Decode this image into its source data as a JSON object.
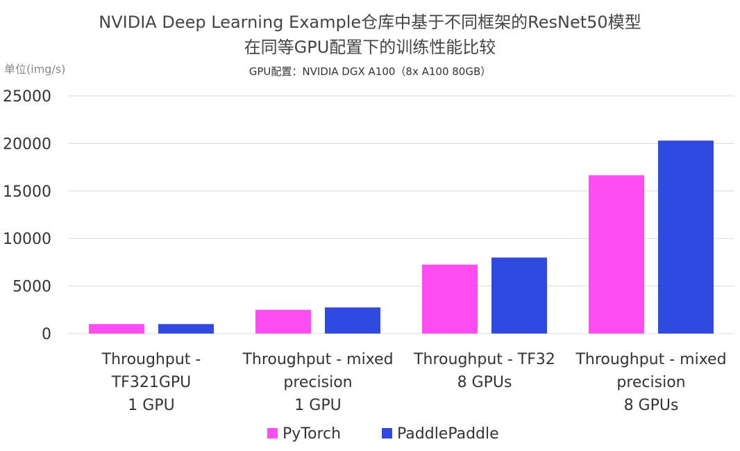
{
  "chart_data": {
    "type": "bar",
    "title_line1": "NVIDIA Deep Learning Example仓库中基于不同框架的ResNet50模型",
    "title_line2": "在同等GPU配置下的训练性能比较",
    "subtitle": "GPU配置：NVIDIA DGX A100（8x A100 80GB）",
    "ylabel": "单位(img/s)",
    "ylim": [
      0,
      25000
    ],
    "yticks": [
      "25000",
      "20000",
      "15000",
      "10000",
      "5000",
      "0"
    ],
    "categories": [
      [
        "Throughput -",
        "TF321GPU",
        "1 GPU"
      ],
      [
        "Throughput - mixed",
        "precision",
        "1 GPU"
      ],
      [
        "Throughput - TF32",
        "8 GPUs"
      ],
      [
        "Throughput - mixed",
        "precision",
        "8 GPUs"
      ]
    ],
    "series": [
      {
        "name": "PyTorch",
        "color": "#ff4df2",
        "values": [
          1000,
          2500,
          7250,
          16650
        ]
      },
      {
        "name": "PaddlePaddle",
        "color": "#2f4ae0",
        "values": [
          1000,
          2750,
          8000,
          20300
        ]
      }
    ],
    "grid": true,
    "legend": "bottom-center"
  }
}
